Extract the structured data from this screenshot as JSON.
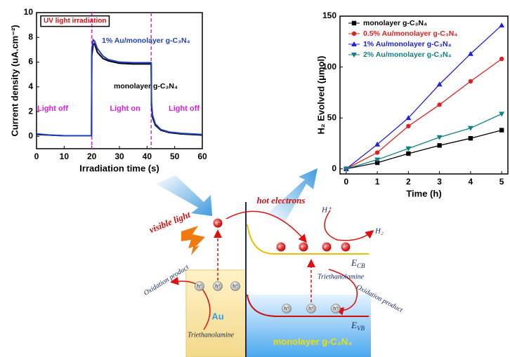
{
  "chart_data": [
    {
      "type": "line",
      "ylabel": "Current density (uA.cm⁻²)",
      "xlabel": "Irradiation time (s)",
      "x": [
        0,
        5,
        10,
        15,
        19.9,
        20,
        20.5,
        21,
        22,
        24,
        26,
        30,
        35,
        40,
        41.5,
        41.6,
        42,
        43,
        45,
        48,
        52,
        56,
        60
      ],
      "series": [
        {
          "name": "monolayer g-C₃N₄",
          "color": "#000000",
          "values": [
            0.15,
            0.1,
            0.05,
            0.05,
            0.05,
            6.5,
            7.4,
            7.5,
            6.8,
            6.3,
            6.1,
            5.9,
            5.85,
            5.85,
            5.85,
            2.5,
            1.5,
            0.9,
            0.5,
            0.3,
            0.2,
            0.15,
            0.1
          ]
        },
        {
          "name": "1% Au/monolayer g-C₃N₄",
          "color": "#1f3fbf",
          "values": [
            0.2,
            0.1,
            0.05,
            0.05,
            0.05,
            7.0,
            7.8,
            7.7,
            7.1,
            6.5,
            6.2,
            6.0,
            5.95,
            5.95,
            5.95,
            2.7,
            1.7,
            1.0,
            0.55,
            0.35,
            0.25,
            0.2,
            0.15
          ]
        }
      ],
      "xlim": [
        0,
        60
      ],
      "xticks": [
        0,
        10,
        20,
        30,
        40,
        50,
        60
      ],
      "ylim": [
        -1,
        10
      ],
      "yticks": [
        0,
        2,
        4,
        6,
        8,
        10
      ],
      "vlines": [
        20,
        41.5
      ],
      "vline_color": "#e020e0",
      "annotations": [
        "UV light irradiation",
        "Light off",
        "Light on",
        "Light off"
      ]
    },
    {
      "type": "line_markers",
      "ylabel": "H₂ Evolved (μmol)",
      "xlabel": "Time (h)",
      "x": [
        0,
        1,
        2,
        3,
        4,
        5
      ],
      "series": [
        {
          "name": "monolayer g-C₃N₄",
          "color": "#000000",
          "marker": "square",
          "values": [
            0,
            6,
            15,
            23,
            30,
            38
          ]
        },
        {
          "name": "0.5% Au/monolayer g-C₃N₄",
          "color": "#e02020",
          "marker": "circle",
          "values": [
            0,
            16,
            42,
            63,
            86,
            108
          ]
        },
        {
          "name": "1% Au/monolayer g-C₃N₄",
          "color": "#2020e0",
          "marker": "triangle-up",
          "values": [
            0,
            24,
            50,
            83,
            113,
            141
          ]
        },
        {
          "name": "2% Au/monolayer g-C₃N₄",
          "color": "#108080",
          "marker": "triangle-down",
          "values": [
            0,
            9,
            20,
            31,
            40,
            54
          ]
        }
      ],
      "xlim": [
        -0.2,
        5.2
      ],
      "xticks": [
        0,
        1,
        2,
        3,
        4,
        5
      ],
      "ylim": [
        -5,
        150
      ],
      "yticks": [
        0,
        50,
        100,
        150
      ],
      "legend": "upper left"
    }
  ],
  "diagram": {
    "hot_electrons": "hot electrons",
    "visible_light": "visible light",
    "h_plus": "H⁺",
    "h2": "H₂",
    "ecb": {
      "main": "E",
      "sub": "CB"
    },
    "evb": {
      "main": "E",
      "sub": "VB"
    },
    "triethanolamine": [
      "Triethanolamine",
      "Triethanolamine"
    ],
    "oxidation_product": [
      "Oxidation product",
      "Oxidation product"
    ],
    "au": "Au",
    "semiconductor": "monolayer g-C₃N₄",
    "electrons": [
      "e⁻",
      "e⁻",
      "e⁻",
      "e⁻",
      "e⁻"
    ],
    "holes": [
      "h⁺",
      "h⁺",
      "h⁺",
      "h⁺",
      "h⁺",
      "h⁺"
    ]
  }
}
